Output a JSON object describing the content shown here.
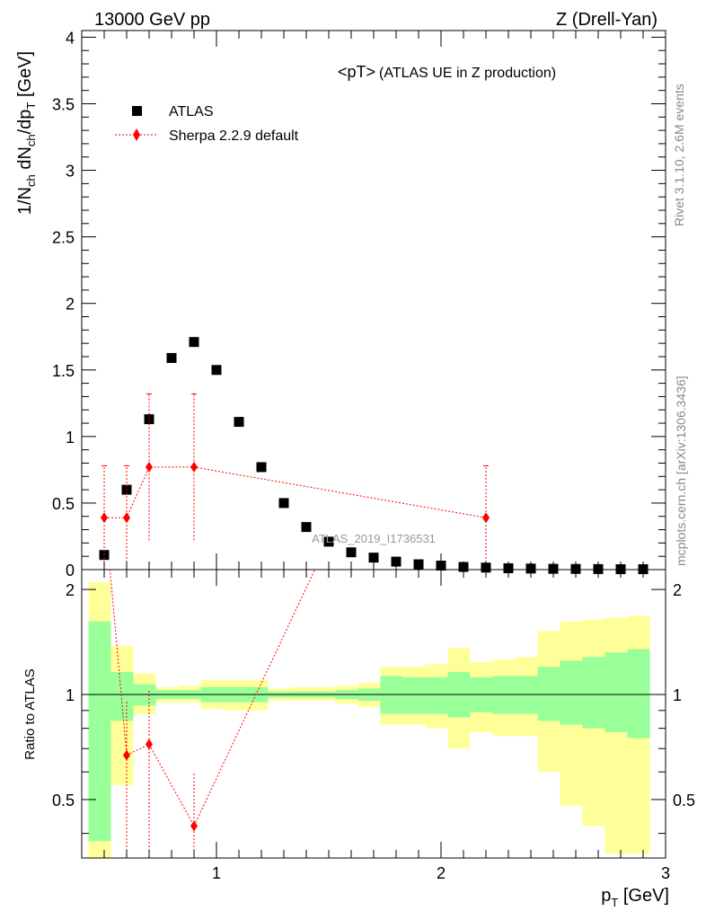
{
  "header": {
    "left": "13000 GeV pp",
    "right": "Z (Drell-Yan)"
  },
  "side": {
    "rivet": "Rivet 3.1.10,  2.6M events",
    "mcplots": "mcplots.cern.ch [arXiv:1306.3436]"
  },
  "analysis_id": "ATLAS_2019_I1736531",
  "chart_data": {
    "type": "scatter",
    "title": "<pT>",
    "subtitle": "(ATLAS UE in Z production)",
    "xlabel": "p_T [GeV]",
    "ylabel": "1/N_ch dN_ch/dp_T [GeV]",
    "ratio_ylabel": "Ratio to ATLAS",
    "xlim": [
      0.4,
      3.0
    ],
    "ylim": [
      0,
      4.05
    ],
    "ratio_ylim": [
      0.34,
      2.28
    ],
    "x_ticks": [
      1,
      2,
      3
    ],
    "y_ticks": [
      0,
      0.5,
      1,
      1.5,
      2,
      2.5,
      3,
      3.5,
      4
    ],
    "y_tick_labels": [
      "0",
      "0.5",
      "1",
      "1.5",
      "2",
      "2.5",
      "3",
      "3.5",
      "4"
    ],
    "ratio_ticks": [
      0.5,
      1,
      2
    ],
    "ratio_tick_labels": [
      "0.5",
      "1",
      "2"
    ],
    "legend": [
      {
        "name": "ATLAS",
        "marker": "square",
        "color": "#000000"
      },
      {
        "name": "Sherpa 2.2.9 default",
        "marker": "diamond",
        "color": "#ff0000",
        "line": "dotted"
      }
    ],
    "atlas": {
      "x": [
        0.5,
        0.6,
        0.7,
        0.8,
        0.9,
        1.0,
        1.1,
        1.2,
        1.3,
        1.4,
        1.5,
        1.6,
        1.7,
        1.8,
        1.9,
        2.0,
        2.1,
        2.2,
        2.3,
        2.4,
        2.5,
        2.6,
        2.7,
        2.8,
        2.9
      ],
      "y": [
        0.11,
        0.6,
        1.13,
        1.59,
        1.71,
        1.5,
        1.11,
        0.77,
        0.5,
        0.32,
        0.21,
        0.13,
        0.09,
        0.06,
        0.04,
        0.03,
        0.02,
        0.015,
        0.01,
        0.008,
        0.006,
        0.005,
        0.004,
        0.003,
        0.003
      ]
    },
    "sherpa": {
      "x": [
        0.5,
        0.6,
        0.7,
        0.9,
        2.2
      ],
      "y": [
        0.39,
        0.39,
        0.77,
        0.77,
        0.39
      ],
      "ylow": [
        0.0,
        0.0,
        0.22,
        0.22,
        0.0
      ],
      "yhigh": [
        0.78,
        0.78,
        1.32,
        1.32,
        0.78
      ],
      "ratio": [
        3.5,
        0.67,
        0.72,
        0.42,
        25.0
      ]
    },
    "ratio_bands": {
      "x_lo": [
        0.43,
        0.53,
        0.63,
        0.73,
        0.83,
        0.93,
        1.03,
        1.13,
        1.23,
        1.33,
        1.43,
        1.53,
        1.63,
        1.73,
        1.83,
        1.93,
        2.03,
        2.13,
        2.23,
        2.33,
        2.43,
        2.53,
        2.63,
        2.73,
        2.83
      ],
      "x_hi": [
        0.53,
        0.63,
        0.73,
        0.83,
        0.93,
        1.03,
        1.13,
        1.23,
        1.33,
        1.43,
        1.53,
        1.63,
        1.73,
        1.83,
        1.93,
        2.03,
        2.13,
        2.23,
        2.33,
        2.43,
        2.53,
        2.63,
        2.73,
        2.83,
        2.93
      ],
      "green_lo": [
        0.38,
        0.84,
        0.93,
        0.97,
        0.97,
        0.95,
        0.95,
        0.95,
        0.98,
        0.98,
        0.98,
        0.97,
        0.96,
        0.88,
        0.88,
        0.88,
        0.86,
        0.89,
        0.88,
        0.88,
        0.84,
        0.82,
        0.8,
        0.78,
        0.75
      ],
      "green_hi": [
        1.62,
        1.16,
        1.07,
        1.03,
        1.03,
        1.05,
        1.05,
        1.05,
        1.02,
        1.02,
        1.02,
        1.03,
        1.04,
        1.13,
        1.12,
        1.12,
        1.16,
        1.12,
        1.13,
        1.13,
        1.2,
        1.25,
        1.28,
        1.32,
        1.35
      ],
      "yellow_lo": [
        0.3,
        0.55,
        0.88,
        0.95,
        0.95,
        0.91,
        0.9,
        0.9,
        0.96,
        0.96,
        0.96,
        0.94,
        0.92,
        0.82,
        0.82,
        0.8,
        0.7,
        0.78,
        0.76,
        0.76,
        0.6,
        0.48,
        0.42,
        0.35,
        0.35
      ],
      "yellow_hi": [
        2.1,
        1.38,
        1.15,
        1.05,
        1.06,
        1.1,
        1.1,
        1.1,
        1.04,
        1.05,
        1.05,
        1.06,
        1.08,
        1.2,
        1.2,
        1.22,
        1.36,
        1.24,
        1.26,
        1.28,
        1.52,
        1.62,
        1.64,
        1.66,
        1.68
      ]
    }
  }
}
